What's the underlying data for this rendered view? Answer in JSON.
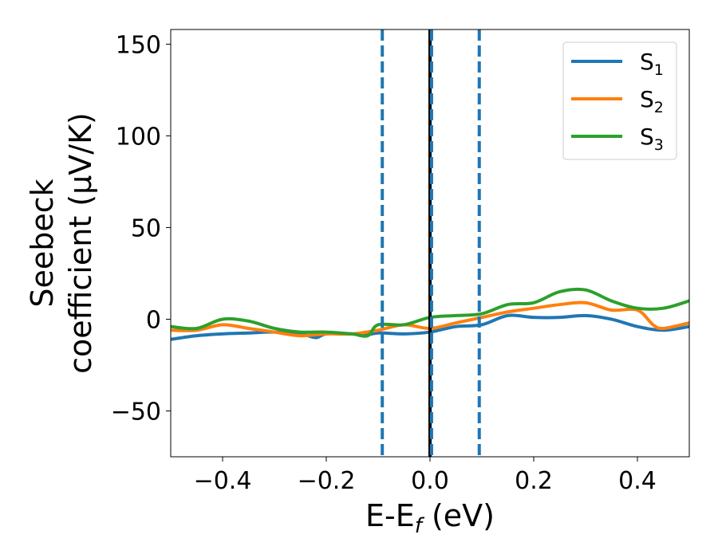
{
  "chart_data": {
    "type": "line",
    "xlabel": {
      "base": "E-E",
      "sub": "f",
      "unit": " (eV)"
    },
    "ylabel": {
      "line1": "Seebeck",
      "line2": "coefficient  (μV/K)"
    },
    "xlim": [
      -0.5,
      0.5
    ],
    "ylim": [
      -75,
      158
    ],
    "xticks": [
      -0.4,
      -0.2,
      0.0,
      0.2,
      0.4
    ],
    "xtick_labels": [
      "−0.4",
      "−0.2",
      "0.0",
      "0.2",
      "0.4"
    ],
    "yticks": [
      -50,
      0,
      50,
      100,
      150
    ],
    "ytick_labels": [
      "−50",
      "0",
      "50",
      "100",
      "150"
    ],
    "grid": false,
    "legend_position": "top-right",
    "series": [
      {
        "name": "S1",
        "legend_base": "S",
        "legend_sub": "1",
        "color": "#1f77b4",
        "x": [
          -0.5,
          -0.45,
          -0.4,
          -0.35,
          -0.3,
          -0.25,
          -0.22,
          -0.2,
          -0.15,
          -0.13,
          -0.1,
          -0.05,
          0.0,
          0.05,
          0.1,
          0.15,
          0.2,
          0.25,
          0.3,
          0.35,
          0.4,
          0.45,
          0.5
        ],
        "y": [
          -11,
          -9,
          -8,
          -7.5,
          -7,
          -8,
          -10,
          -8,
          -8,
          -9,
          -7.5,
          -8,
          -7,
          -4,
          -3,
          2,
          1,
          1,
          2,
          0,
          -4,
          -6,
          -4
        ]
      },
      {
        "name": "S2",
        "legend_base": "S",
        "legend_sub": "2",
        "color": "#ff7f0e",
        "x": [
          -0.5,
          -0.45,
          -0.4,
          -0.35,
          -0.3,
          -0.25,
          -0.2,
          -0.15,
          -0.1,
          -0.05,
          0.0,
          0.05,
          0.1,
          0.15,
          0.2,
          0.25,
          0.3,
          0.35,
          0.4,
          0.43,
          0.45,
          0.5
        ],
        "y": [
          -6,
          -6,
          -3,
          -5,
          -7,
          -9,
          -8,
          -8,
          -6,
          -3,
          -5,
          -2,
          1,
          4,
          6,
          8,
          9,
          5,
          5,
          -3,
          -5,
          -2
        ]
      },
      {
        "name": "S3",
        "legend_base": "S",
        "legend_sub": "3",
        "color": "#2ca02c",
        "x": [
          -0.5,
          -0.45,
          -0.4,
          -0.35,
          -0.3,
          -0.25,
          -0.2,
          -0.15,
          -0.12,
          -0.1,
          -0.05,
          0.0,
          0.05,
          0.1,
          0.15,
          0.2,
          0.25,
          0.3,
          0.35,
          0.4,
          0.45,
          0.5
        ],
        "y": [
          -4,
          -5,
          0,
          -1,
          -5,
          -7,
          -7,
          -8,
          -9,
          -3,
          -3,
          1,
          2,
          3,
          8,
          9,
          15,
          16,
          10,
          6,
          6,
          10
        ]
      }
    ],
    "vertical_lines": [
      {
        "x": -0.092,
        "color": "#1f77b4",
        "style": "dashed"
      },
      {
        "x": 0.0,
        "color": "#000000",
        "style": "solid"
      },
      {
        "x": 0.003,
        "color": "#1f77b4",
        "style": "dashed"
      },
      {
        "x": 0.095,
        "color": "#1f77b4",
        "style": "dashed"
      }
    ]
  }
}
